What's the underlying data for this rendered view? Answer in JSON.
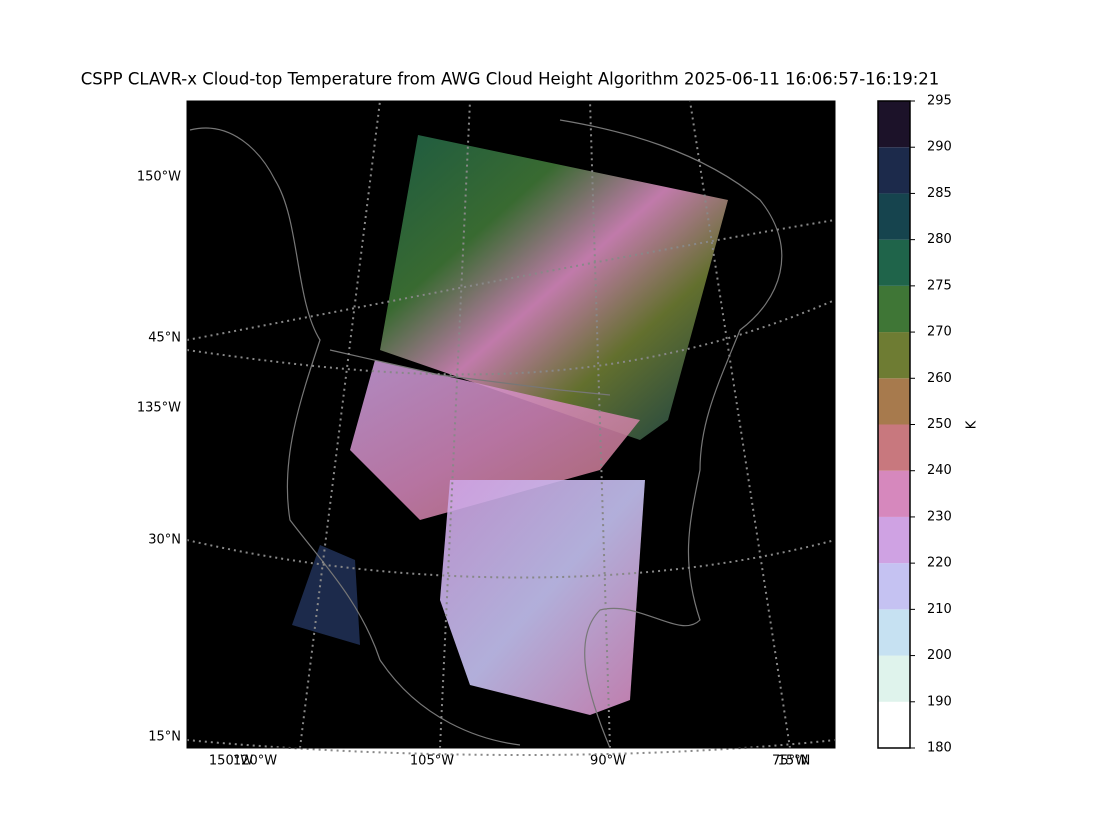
{
  "title": "CSPP CLAVR-x Cloud-top Temperature from AWG Cloud Height Algorithm 2025-06-11 16:06:57-16:19:21",
  "map": {
    "left_labels": [
      "150°W",
      "45°N",
      "135°W",
      "30°N",
      "15°N"
    ],
    "bottom_labels": [
      "150°W",
      "120°W",
      "105°W",
      "90°W",
      "75°W",
      "15°N"
    ]
  },
  "colorbar": {
    "label": "K",
    "ticks": [
      180,
      190,
      200,
      210,
      220,
      230,
      240,
      250,
      260,
      270,
      275,
      280,
      285,
      290,
      295
    ],
    "colors": [
      "#ffffff",
      "#dff3ec",
      "#c6e1f2",
      "#c5c2f2",
      "#cfa2e3",
      "#d688bd",
      "#c8787e",
      "#a77a4d",
      "#6e7c33",
      "#3f7636",
      "#1f644a",
      "#16444e",
      "#1c2a4b",
      "#1c1229",
      "#000000"
    ]
  }
}
